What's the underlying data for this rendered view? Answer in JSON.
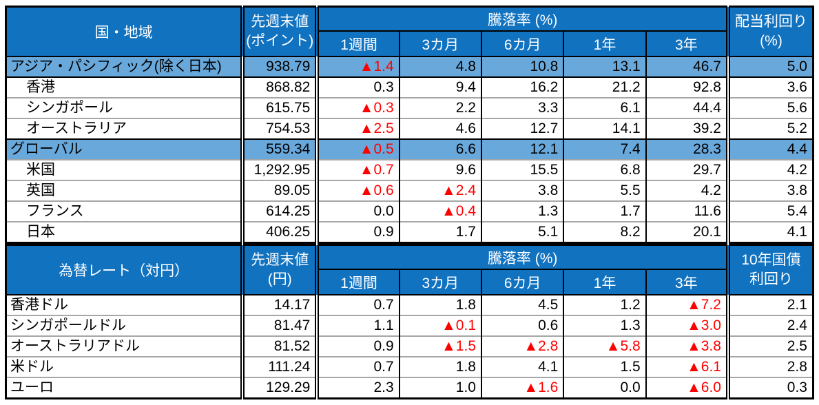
{
  "colors": {
    "header_bg": "#1172C0",
    "header_text": "#FFFFFF",
    "section_row_bg": "#69A8DB",
    "negative_text": "#FF0000",
    "gray_separator": "#A6A6A6",
    "grid_black": "#000000"
  },
  "stock_table": {
    "region_header": "国・地域",
    "last_week_header_line1": "先週末値",
    "last_week_header_line2": "(ポイント)",
    "change_header": "騰落率 (%)",
    "periods": [
      "1週間",
      "3カ月",
      "6カ月",
      "1年",
      "3年"
    ],
    "extra_header_line1": "配当利回り",
    "extra_header_line2": "(%)",
    "rows": [
      {
        "label": "アジア・パシフィック(除く日本)",
        "section": true,
        "indent": false,
        "top_border": "none",
        "value": "938.79",
        "changes": [
          "▲1.4",
          "4.8",
          "10.8",
          "13.1",
          "46.7"
        ],
        "extra": "5.0"
      },
      {
        "label": "香港",
        "section": false,
        "indent": true,
        "top_border": "black",
        "value": "868.82",
        "changes": [
          "0.3",
          "9.4",
          "16.2",
          "21.2",
          "92.8"
        ],
        "extra": "3.6"
      },
      {
        "label": "シンガポール",
        "section": false,
        "indent": true,
        "top_border": "gray",
        "value": "615.75",
        "changes": [
          "▲0.3",
          "2.2",
          "3.3",
          "6.1",
          "44.4"
        ],
        "extra": "5.6"
      },
      {
        "label": "オーストラリア",
        "section": false,
        "indent": true,
        "top_border": "gray",
        "value": "754.53",
        "changes": [
          "▲2.5",
          "4.6",
          "12.7",
          "14.1",
          "39.2"
        ],
        "extra": "5.2"
      },
      {
        "label": "グローバル",
        "section": true,
        "indent": false,
        "top_border": "black",
        "value": "559.34",
        "changes": [
          "▲0.5",
          "6.6",
          "12.1",
          "7.4",
          "28.3"
        ],
        "extra": "4.4"
      },
      {
        "label": "米国",
        "section": false,
        "indent": true,
        "top_border": "gray",
        "value": "1,292.95",
        "changes": [
          "▲0.7",
          "9.6",
          "15.5",
          "6.8",
          "29.7"
        ],
        "extra": "4.2"
      },
      {
        "label": "英国",
        "section": false,
        "indent": true,
        "top_border": "gray",
        "value": "89.05",
        "changes": [
          "▲0.6",
          "▲2.4",
          "3.8",
          "5.5",
          "4.2"
        ],
        "extra": "3.8"
      },
      {
        "label": "フランス",
        "section": false,
        "indent": true,
        "top_border": "gray",
        "value": "614.25",
        "changes": [
          "0.0",
          "▲0.4",
          "1.3",
          "1.7",
          "11.6"
        ],
        "extra": "5.4"
      },
      {
        "label": "日本",
        "section": false,
        "indent": true,
        "top_border": "gray",
        "value": "406.25",
        "changes": [
          "0.9",
          "1.7",
          "5.1",
          "8.2",
          "20.1"
        ],
        "extra": "4.1"
      }
    ]
  },
  "fx_table": {
    "region_header": "為替レート（対円）",
    "last_week_header_line1": "先週末値",
    "last_week_header_line2": "(円)",
    "change_header": "騰落率 (%)",
    "periods": [
      "1週間",
      "3カ月",
      "6カ月",
      "1年",
      "3年"
    ],
    "extra_header_line1": "10年国債",
    "extra_header_line2": "利回り",
    "rows": [
      {
        "label": "香港ドル",
        "section": false,
        "indent": false,
        "top_border": "none",
        "value": "14.17",
        "changes": [
          "0.7",
          "1.8",
          "4.5",
          "1.2",
          "▲7.2"
        ],
        "extra": "2.1"
      },
      {
        "label": "シンガポールドル",
        "section": false,
        "indent": false,
        "top_border": "gray",
        "value": "81.47",
        "changes": [
          "1.1",
          "▲0.1",
          "0.6",
          "1.3",
          "▲3.0"
        ],
        "extra": "2.4"
      },
      {
        "label": "オーストラリアドル",
        "section": false,
        "indent": false,
        "top_border": "gray",
        "value": "81.52",
        "changes": [
          "0.9",
          "▲1.5",
          "▲2.8",
          "▲5.8",
          "▲3.8"
        ],
        "extra": "2.5"
      },
      {
        "label": "米ドル",
        "section": false,
        "indent": false,
        "top_border": "gray",
        "value": "111.24",
        "changes": [
          "0.7",
          "1.8",
          "4.1",
          "1.5",
          "▲6.1"
        ],
        "extra": "2.8"
      },
      {
        "label": "ユーロ",
        "section": false,
        "indent": false,
        "top_border": "gray",
        "value": "129.29",
        "changes": [
          "2.3",
          "1.0",
          "▲1.6",
          "0.0",
          "▲6.0"
        ],
        "extra": "0.3"
      }
    ]
  }
}
